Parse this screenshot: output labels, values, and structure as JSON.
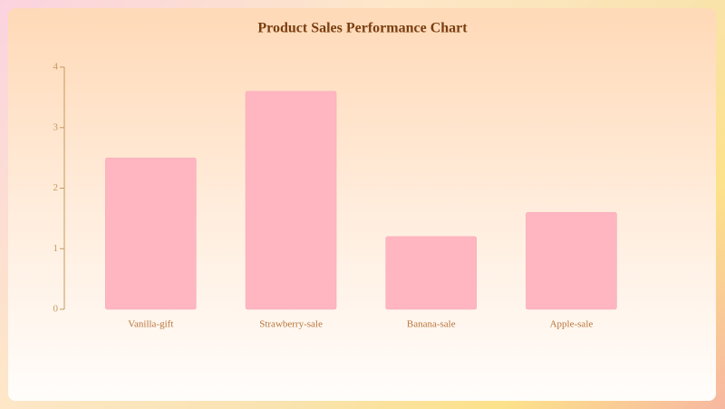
{
  "chart_data": {
    "type": "bar",
    "title": "Product Sales Performance Chart",
    "categories": [
      "Vanilla-gift",
      "Strawberry-sale",
      "Banana-sale",
      "Apple-sale"
    ],
    "values": [
      2.5,
      3.6,
      1.2,
      1.6
    ],
    "color": "#ffb6c1",
    "ylim": [
      0,
      4
    ],
    "yticks": [
      0,
      1,
      2,
      3,
      4
    ],
    "grid": false
  }
}
